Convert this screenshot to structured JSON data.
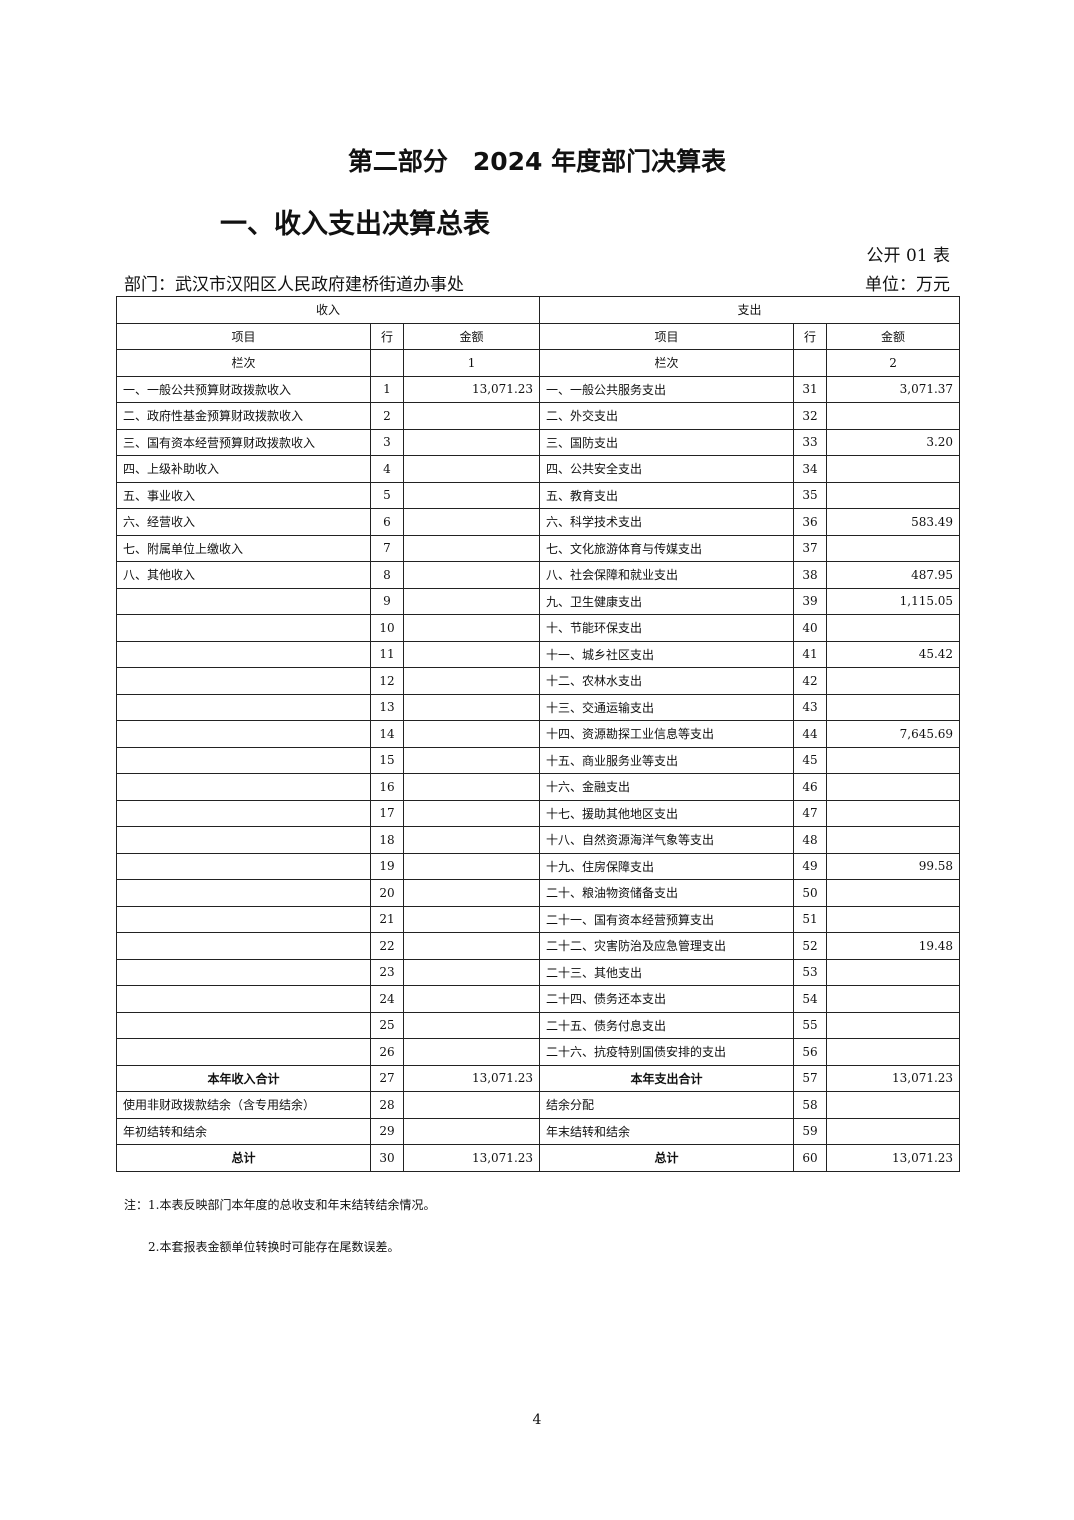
{
  "title": "第二部分　2024 年度部门决算表",
  "subtitle": "一、收入支出决算总表",
  "form_no": "公开 01 表",
  "department": "部门：武汉市汉阳区人民政府建桥街道办事处",
  "unit": "单位：万元",
  "table": {
    "income_header": "收入",
    "expense_header": "支出",
    "col_item": "项目",
    "col_row": "行",
    "col_amount": "金额",
    "col_index_label": "栏次",
    "income_col_index": "1",
    "expense_col_index": "2",
    "rows": [
      {
        "li": "一、一般公共预算财政拨款收入",
        "ln": "1",
        "la": "13,071.23",
        "ri": "一、一般公共服务支出",
        "rn": "31",
        "ra": "3,071.37"
      },
      {
        "li": "二、政府性基金预算财政拨款收入",
        "ln": "2",
        "la": "",
        "ri": "二、外交支出",
        "rn": "32",
        "ra": ""
      },
      {
        "li": "三、国有资本经营预算财政拨款收入",
        "ln": "3",
        "la": "",
        "ri": "三、国防支出",
        "rn": "33",
        "ra": "3.20"
      },
      {
        "li": "四、上级补助收入",
        "ln": "4",
        "la": "",
        "ri": "四、公共安全支出",
        "rn": "34",
        "ra": ""
      },
      {
        "li": "五、事业收入",
        "ln": "5",
        "la": "",
        "ri": "五、教育支出",
        "rn": "35",
        "ra": ""
      },
      {
        "li": "六、经营收入",
        "ln": "6",
        "la": "",
        "ri": "六、科学技术支出",
        "rn": "36",
        "ra": "583.49"
      },
      {
        "li": "七、附属单位上缴收入",
        "ln": "7",
        "la": "",
        "ri": "七、文化旅游体育与传媒支出",
        "rn": "37",
        "ra": ""
      },
      {
        "li": "八、其他收入",
        "ln": "8",
        "la": "",
        "ri": "八、社会保障和就业支出",
        "rn": "38",
        "ra": "487.95"
      },
      {
        "li": "",
        "ln": "9",
        "la": "",
        "ri": "九、卫生健康支出",
        "rn": "39",
        "ra": "1,115.05"
      },
      {
        "li": "",
        "ln": "10",
        "la": "",
        "ri": "十、节能环保支出",
        "rn": "40",
        "ra": ""
      },
      {
        "li": "",
        "ln": "11",
        "la": "",
        "ri": "十一、城乡社区支出",
        "rn": "41",
        "ra": "45.42"
      },
      {
        "li": "",
        "ln": "12",
        "la": "",
        "ri": "十二、农林水支出",
        "rn": "42",
        "ra": ""
      },
      {
        "li": "",
        "ln": "13",
        "la": "",
        "ri": "十三、交通运输支出",
        "rn": "43",
        "ra": ""
      },
      {
        "li": "",
        "ln": "14",
        "la": "",
        "ri": "十四、资源勘探工业信息等支出",
        "rn": "44",
        "ra": "7,645.69"
      },
      {
        "li": "",
        "ln": "15",
        "la": "",
        "ri": "十五、商业服务业等支出",
        "rn": "45",
        "ra": ""
      },
      {
        "li": "",
        "ln": "16",
        "la": "",
        "ri": "十六、金融支出",
        "rn": "46",
        "ra": ""
      },
      {
        "li": "",
        "ln": "17",
        "la": "",
        "ri": "十七、援助其他地区支出",
        "rn": "47",
        "ra": ""
      },
      {
        "li": "",
        "ln": "18",
        "la": "",
        "ri": "十八、自然资源海洋气象等支出",
        "rn": "48",
        "ra": ""
      },
      {
        "li": "",
        "ln": "19",
        "la": "",
        "ri": "十九、住房保障支出",
        "rn": "49",
        "ra": "99.58"
      },
      {
        "li": "",
        "ln": "20",
        "la": "",
        "ri": "二十、粮油物资储备支出",
        "rn": "50",
        "ra": ""
      },
      {
        "li": "",
        "ln": "21",
        "la": "",
        "ri": "二十一、国有资本经营预算支出",
        "rn": "51",
        "ra": ""
      },
      {
        "li": "",
        "ln": "22",
        "la": "",
        "ri": "二十二、灾害防治及应急管理支出",
        "rn": "52",
        "ra": "19.48"
      },
      {
        "li": "",
        "ln": "23",
        "la": "",
        "ri": "二十三、其他支出",
        "rn": "53",
        "ra": ""
      },
      {
        "li": "",
        "ln": "24",
        "la": "",
        "ri": "二十四、债务还本支出",
        "rn": "54",
        "ra": ""
      },
      {
        "li": "",
        "ln": "25",
        "la": "",
        "ri": "二十五、债务付息支出",
        "rn": "55",
        "ra": ""
      },
      {
        "li": "",
        "ln": "26",
        "la": "",
        "ri": "二十六、抗疫特别国债安排的支出",
        "rn": "56",
        "ra": ""
      },
      {
        "li": "本年收入合计",
        "ln": "27",
        "la": "13,071.23",
        "ri": "本年支出合计",
        "rn": "57",
        "ra": "13,071.23",
        "bold": true
      },
      {
        "li": "使用非财政拨款结余（含专用结余）",
        "ln": "28",
        "la": "",
        "ri": "结余分配",
        "rn": "58",
        "ra": ""
      },
      {
        "li": "年初结转和结余",
        "ln": "29",
        "la": "",
        "ri": "年末结转和结余",
        "rn": "59",
        "ra": ""
      },
      {
        "li": "总计",
        "ln": "30",
        "la": "13,071.23",
        "ri": "总计",
        "rn": "60",
        "ra": "13,071.23",
        "bold": true
      }
    ]
  },
  "notes": [
    "注：1.本表反映部门本年度的总收支和年末结转结余情况。",
    "2.本套报表金额单位转换时可能存在尾数误差。"
  ],
  "page_number": "4"
}
